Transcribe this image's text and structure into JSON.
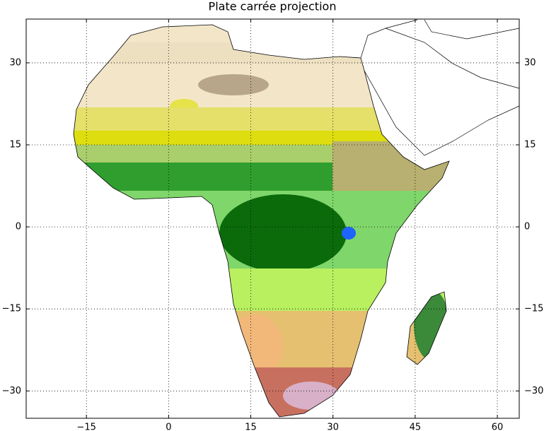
{
  "map": {
    "title": "Plate carrée projection",
    "xlim": [
      -26,
      64
    ],
    "ylim": [
      -35,
      38
    ],
    "xticks": [
      {
        "value": -15,
        "label": "−15"
      },
      0,
      15,
      30,
      45,
      60
    ],
    "yticks": [
      {
        "value": -30,
        "label": "−30"
      },
      {
        "value": -15,
        "label": "−15"
      },
      0,
      15,
      30
    ],
    "grid": true
  }
}
